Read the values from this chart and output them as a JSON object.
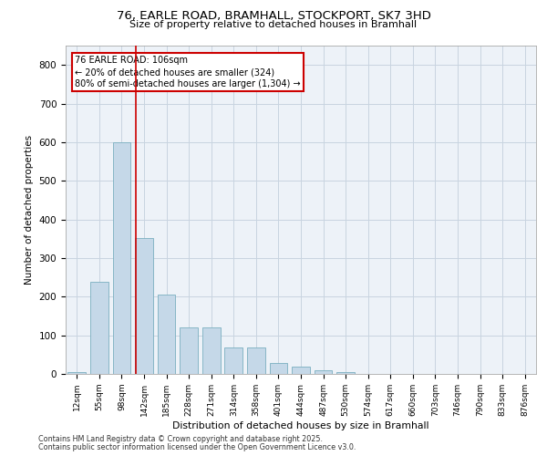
{
  "title_line1": "76, EARLE ROAD, BRAMHALL, STOCKPORT, SK7 3HD",
  "title_line2": "Size of property relative to detached houses in Bramhall",
  "xlabel": "Distribution of detached houses by size in Bramhall",
  "ylabel": "Number of detached properties",
  "categories": [
    "12sqm",
    "55sqm",
    "98sqm",
    "142sqm",
    "185sqm",
    "228sqm",
    "271sqm",
    "314sqm",
    "358sqm",
    "401sqm",
    "444sqm",
    "487sqm",
    "530sqm",
    "574sqm",
    "617sqm",
    "660sqm",
    "703sqm",
    "746sqm",
    "790sqm",
    "833sqm",
    "876sqm"
  ],
  "values": [
    5,
    238,
    600,
    352,
    205,
    120,
    120,
    68,
    68,
    28,
    18,
    10,
    5,
    0,
    0,
    0,
    0,
    0,
    0,
    0,
    0
  ],
  "bar_color": "#c5d8e8",
  "bar_edge_color": "#7aafc0",
  "grid_color": "#c8d4e0",
  "background_color": "#edf2f8",
  "vline_x": 2.62,
  "vline_color": "#cc0000",
  "annotation_text": "76 EARLE ROAD: 106sqm\n← 20% of detached houses are smaller (324)\n80% of semi-detached houses are larger (1,304) →",
  "annotation_box_color": "#cc0000",
  "ylim": [
    0,
    850
  ],
  "yticks": [
    0,
    100,
    200,
    300,
    400,
    500,
    600,
    700,
    800
  ],
  "footer_line1": "Contains HM Land Registry data © Crown copyright and database right 2025.",
  "footer_line2": "Contains public sector information licensed under the Open Government Licence v3.0."
}
